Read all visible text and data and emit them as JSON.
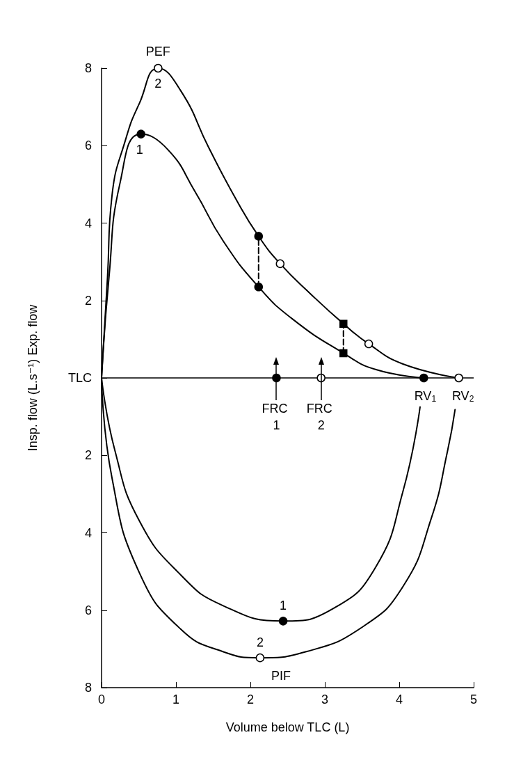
{
  "chart_data": {
    "type": "line",
    "xlabel": "Volume below TLC (L)",
    "ylabel": "Insp. flow (L.s⁻¹) Exp. flow",
    "xlim": [
      0,
      5
    ],
    "xticks": [
      0,
      1,
      2,
      3,
      4,
      5
    ],
    "ylim": [
      -8,
      8
    ],
    "yticks": [
      {
        "value": -8,
        "label": "8"
      },
      {
        "value": -6,
        "label": "6"
      },
      {
        "value": -4,
        "label": "4"
      },
      {
        "value": -2,
        "label": "2"
      },
      {
        "value": 0,
        "label": "TLC"
      },
      2,
      4,
      6,
      8
    ],
    "grid": false,
    "marker": "none",
    "line_style": "solid",
    "series": [
      {
        "color": "#000000",
        "x": [
          0,
          0.08,
          0.14,
          0.33,
          0.51,
          0.76,
          1.07,
          1.44,
          1.82,
          2.11,
          2.4,
          2.82,
          3.25,
          3.59,
          4.05,
          4.8
        ],
        "values": [
          0,
          2.6,
          4.7,
          6.2,
          7.1,
          8.0,
          7.4,
          5.95,
          4.57,
          3.66,
          2.95,
          2.15,
          1.4,
          0.88,
          0.36,
          0
        ]
      },
      {
        "color": "#000000",
        "x": [
          0,
          0.1,
          0.25,
          0.53,
          0.89,
          1.26,
          1.63,
          2.11,
          2.56,
          3.25,
          3.68,
          4.33
        ],
        "values": [
          0,
          2.6,
          5.05,
          6.3,
          5.9,
          4.8,
          3.55,
          2.35,
          1.53,
          0.64,
          0.22,
          0
        ]
      },
      {
        "color": "#000000",
        "x": [
          0,
          0.18,
          0.51,
          1.07,
          1.63,
          2.44,
          3.12,
          3.68,
          4.05,
          4.28
        ],
        "values": [
          0,
          -1.88,
          -3.7,
          -5.1,
          -5.88,
          -6.28,
          -5.95,
          -4.9,
          -2.93,
          -0.75
        ]
      },
      {
        "color": "#000000",
        "x": [
          0,
          0.14,
          0.51,
          1.07,
          1.63,
          2.13,
          2.75,
          3.5,
          4.05,
          4.43,
          4.65,
          4.75
        ],
        "values": [
          0,
          -2.58,
          -5.04,
          -6.5,
          -7.07,
          -7.23,
          -7.07,
          -6.44,
          -5.39,
          -3.63,
          -1.88,
          -0.82
        ]
      },
      {
        "color": "#000000",
        "line_style": "dashed",
        "x": [
          2.11,
          2.11
        ],
        "values": [
          2.35,
          3.66
        ]
      },
      {
        "color": "#000000",
        "line_style": "dashed",
        "x": [
          3.25,
          3.25
        ],
        "values": [
          0.64,
          1.4
        ]
      },
      {
        "type": "scatter",
        "marker": "circle",
        "color": "#000000",
        "x": [
          0.53,
          2.11,
          2.11,
          2.35,
          4.33,
          2.44
        ],
        "values": [
          6.3,
          3.66,
          2.35,
          0,
          0,
          -6.28
        ]
      },
      {
        "type": "scatter",
        "marker": "circle",
        "color": "#ffffff",
        "x": [
          0.76,
          2.4,
          3.59,
          2.95,
          4.8,
          2.13
        ],
        "values": [
          8.0,
          2.95,
          0.88,
          0,
          0,
          -7.23
        ]
      },
      {
        "type": "scatter",
        "marker": "square",
        "color": "#000000",
        "x": [
          3.25,
          3.25
        ],
        "values": [
          1.4,
          0.64
        ]
      }
    ],
    "ref_lines": [
      {
        "axis": "y",
        "value": 0,
        "color": "#000000"
      }
    ],
    "annotations": [
      {
        "text": "PEF",
        "x": 0.76,
        "y": 8
      },
      {
        "text": "2",
        "x": 0.76,
        "y": 8
      },
      {
        "text": "1",
        "x": 0.53,
        "y": 6.3
      },
      "FRC 1",
      "FRC 2",
      {
        "text": "RV$_{1}$",
        "x": 4.33,
        "y": 0
      },
      {
        "text": "RV$_{2}$",
        "x": 4.8,
        "y": 0
      },
      {
        "text": "1",
        "x": 2.44,
        "y": -6.28
      },
      {
        "text": "2",
        "x": 2.13,
        "y": -7.23
      },
      {
        "text": "PIF",
        "x": 2.13,
        "y": -7.23
      }
    ]
  }
}
